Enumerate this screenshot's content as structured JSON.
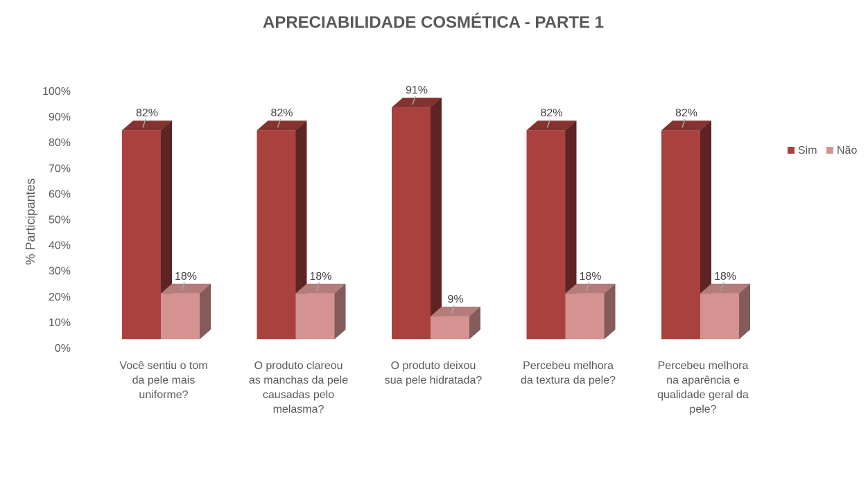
{
  "chart_data": {
    "type": "bar",
    "title": "APRECIABILIDADE COSMÉTICA - PARTE 1",
    "ylabel": "% Participantes",
    "ylim": [
      0,
      100
    ],
    "yticks": [
      "0%",
      "10%",
      "20%",
      "30%",
      "40%",
      "50%",
      "60%",
      "70%",
      "80%",
      "90%",
      "100%"
    ],
    "categories": [
      [
        "Você sentiu o tom",
        "da pele mais",
        "uniforme?"
      ],
      [
        "O produto clareou",
        "as manchas da pele",
        "causadas pelo",
        "melasma?"
      ],
      [
        "O produto deixou",
        "sua pele hidratada?"
      ],
      [
        "Percebeu melhora",
        "da textura da pele?"
      ],
      [
        "Percebeu melhora",
        "na aparência e",
        "qualidade geral da",
        "pele?"
      ]
    ],
    "series": [
      {
        "name": "Sim",
        "values": [
          82,
          82,
          91,
          82,
          82
        ],
        "labels": [
          "82%",
          "82%",
          "91%",
          "82%",
          "82%"
        ],
        "color": "#a9423f"
      },
      {
        "name": "Não",
        "values": [
          18,
          18,
          9,
          18,
          18
        ],
        "labels": [
          "18%",
          "18%",
          "9%",
          "18%",
          "18%"
        ],
        "color": "#d49391"
      }
    ],
    "legend": "right",
    "grid": false
  }
}
